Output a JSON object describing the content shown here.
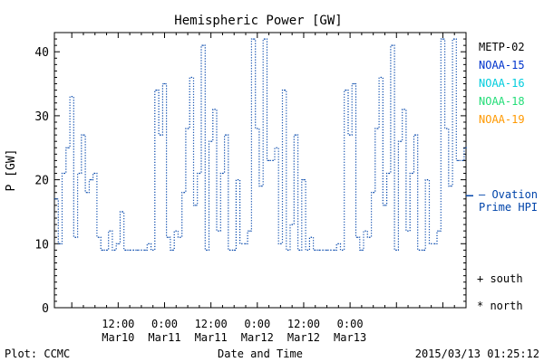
{
  "chart_data": {
    "type": "line",
    "title": "Hemispheric Power [GW]",
    "ylabel": "P [GW]",
    "xlabel": "Date and Time",
    "ylim": [
      0,
      43
    ],
    "yticks": [
      0,
      10,
      20,
      30,
      40
    ],
    "xlim_hours": [
      -4.5,
      102
    ],
    "xticks": [
      {
        "h": 12,
        "l1": "12:00",
        "l2": "Mar10"
      },
      {
        "h": 24,
        "l1": "0:00",
        "l2": "Mar11"
      },
      {
        "h": 36,
        "l1": "12:00",
        "l2": "Mar11"
      },
      {
        "h": 48,
        "l1": "0:00",
        "l2": "Mar12"
      },
      {
        "h": 60,
        "l1": "12:00",
        "l2": "Mar12"
      },
      {
        "h": 72,
        "l1": "0:00",
        "l2": "Mar13"
      }
    ],
    "legend": [
      {
        "label": "METP-02",
        "color": "#000000"
      },
      {
        "label": "NOAA-15",
        "color": "#0033cc"
      },
      {
        "label": "NOAA-16",
        "color": "#00ccdd"
      },
      {
        "label": "NOAA-18",
        "color": "#22dd77"
      },
      {
        "label": "NOAA-19",
        "color": "#ff9900"
      }
    ],
    "ovation": {
      "label1": "— Ovation",
      "label2": "Prime HPI",
      "color": "#0044aa",
      "value": 17.5
    },
    "markers": [
      {
        "label": "+ south"
      },
      {
        "label": "* north"
      }
    ],
    "series": [
      {
        "name": "Ovation Prime HPI",
        "color": "#0044aa",
        "x": [
          -4.5,
          -3.5,
          -2.5,
          -1.5,
          -0.5,
          0.5,
          1.5,
          2.5,
          3.5,
          4.5,
          5.5,
          6.5,
          7.5,
          8.5,
          9.5,
          10.5,
          11.5,
          12.5,
          13.5,
          14.5,
          15.5,
          16.5,
          17.5,
          18.5,
          19.5,
          20.5,
          21.5,
          22.5,
          23.5,
          24.5,
          25.5,
          26.5,
          27.5,
          28.5,
          29.5,
          30.5,
          31.5,
          32.5,
          33.5,
          34.5,
          35.5,
          36.5,
          37.5,
          38.5,
          39.5,
          40.5,
          41.5,
          42.5,
          43.5,
          44.5,
          45.5,
          46.5,
          47.5,
          48.5,
          49.5,
          50.5,
          51.5,
          52.5,
          53.5,
          54.5,
          55.5,
          56.5,
          57.5,
          58.5,
          59.5,
          60.5,
          61.5,
          62.5,
          63.5,
          64.5,
          65.5,
          66.5,
          67.5,
          68.5,
          69.5,
          70.5,
          71.5,
          72.5,
          73.5,
          74.5,
          75.5,
          76.5,
          77.5,
          78.5,
          79.5,
          80.5,
          81.5,
          82.5,
          83.5,
          84.5,
          85.5,
          86.5,
          87.5,
          88.5,
          89.5,
          90.5,
          91.5,
          92.5,
          93.5,
          94.5,
          95.5,
          96.5,
          97.5,
          98.5,
          99.5,
          100.5,
          101.5
        ],
        "y": [
          17,
          10,
          21,
          25,
          33,
          11,
          21,
          27,
          18,
          20,
          21,
          11,
          9,
          9,
          12,
          9,
          10,
          15,
          9,
          9,
          9,
          9,
          9,
          9,
          10,
          9,
          34,
          27,
          35,
          11,
          9,
          12,
          11,
          18,
          28,
          36,
          16,
          21,
          41,
          9,
          26,
          31,
          12,
          21,
          27,
          9,
          9,
          20,
          10,
          10,
          12,
          42,
          28,
          19,
          42,
          23,
          23,
          25,
          10,
          34,
          9,
          13,
          27,
          9,
          20,
          9,
          11,
          9,
          9,
          9,
          9,
          9,
          9,
          10,
          9,
          34,
          27,
          35,
          11,
          9,
          12,
          11,
          18,
          28,
          36,
          16,
          21,
          41,
          9,
          26,
          31,
          12,
          21,
          27,
          9,
          9,
          20,
          10,
          10,
          12,
          42,
          28,
          19,
          42,
          23,
          23,
          25
        ]
      }
    ]
  },
  "footer": {
    "left": "Plot: CCMC",
    "center": "Date and Time",
    "right": "2015/03/13 01:25:12"
  }
}
